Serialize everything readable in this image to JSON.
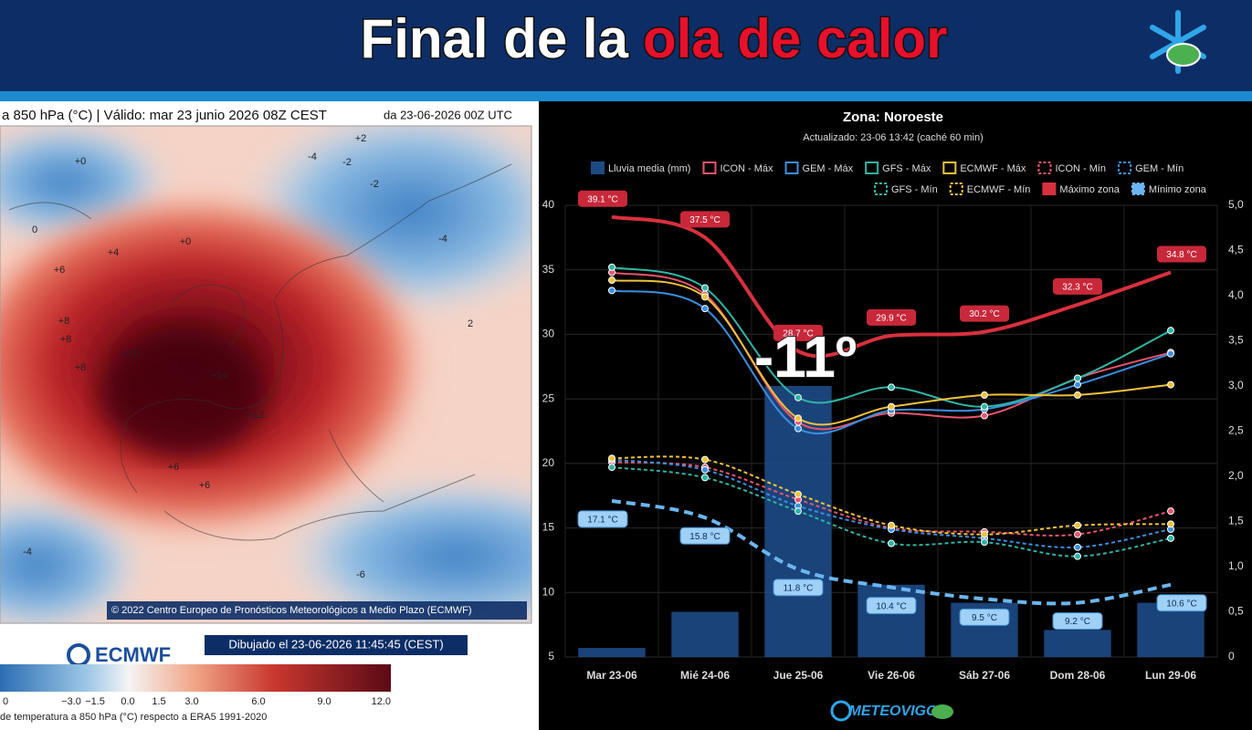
{
  "header": {
    "title_parts": [
      "Final de la",
      "ola de calor"
    ]
  },
  "map": {
    "title": "a 850 hPa (°C) | Válido: mar 23 junio 2026 08Z CEST",
    "run": "da 23-06-2026 00Z UTC",
    "copyright": "© 2022 Centro Europeo de Pronósticos Meteorológicos a Medio Plazo (ECMWF)",
    "drawn": "Dibujado el 23-06-2026 11:45:45 (CEST)",
    "logo": "ECMWF",
    "contour_labels": [
      "+2",
      "+0",
      "-4",
      "-2",
      "-2",
      "0",
      "+4",
      "+0",
      "+6",
      "+10",
      "+14",
      "+12",
      "+8",
      "+8",
      "+6",
      "+8",
      "+6",
      "-4",
      "-6",
      "2",
      "-4"
    ],
    "colorbar_labels": [
      "0",
      "−3.0",
      "−1.5",
      "0.0",
      "1.5",
      "3.0",
      "6.0",
      "9.0",
      "12.0"
    ],
    "colorbar_caption": "de temperatura a 850 hPa (°C) respecto a ERA5 1991-2020"
  },
  "chart_data": {
    "type": "line",
    "title": "Zona: Noroeste",
    "subtitle": "Actualizado: 23-06 13:42 (caché 60 min)",
    "annotation": "-11º",
    "categories": [
      "Mar 23-06",
      "Mié 24-06",
      "Jue 25-06",
      "Vie 26-06",
      "Sáb 27-06",
      "Dom 28-06",
      "Lun 29-06"
    ],
    "ylim": [
      5,
      40
    ],
    "yticks": [
      5,
      10,
      15,
      20,
      25,
      30,
      35,
      40
    ],
    "y2lim": [
      0,
      5
    ],
    "y2ticks": [
      0,
      {
        "value": 0.5,
        "label": "0,5"
      },
      {
        "value": 1,
        "label": "1,0"
      },
      {
        "value": 1.5,
        "label": "1,5"
      },
      {
        "value": 2,
        "label": "2,0"
      },
      {
        "value": 2.5,
        "label": "2,5"
      },
      {
        "value": 3,
        "label": "3,0"
      },
      {
        "value": 3.5,
        "label": "3,5"
      },
      {
        "value": 4,
        "label": "4,0"
      },
      {
        "value": 4.5,
        "label": "4,5"
      },
      {
        "value": 5,
        "label": "5,0"
      }
    ],
    "grid": true,
    "series": [
      {
        "name": "Lluvia media (mm)",
        "type": "bar",
        "axis": "y2",
        "color": "#1d4a86",
        "values": [
          0.1,
          0.5,
          3.0,
          0.8,
          0.6,
          0.3,
          0.6
        ]
      },
      {
        "name": "ICON - Máx",
        "color": "#e8556d",
        "values": [
          34.8,
          33.1,
          23.2,
          23.9,
          23.7,
          26.6,
          28.6
        ]
      },
      {
        "name": "GEM - Máx",
        "color": "#3b8fe0",
        "values": [
          33.4,
          32.0,
          22.7,
          24.1,
          24.2,
          26.1,
          28.5
        ]
      },
      {
        "name": "GFS - Máx",
        "color": "#2fb5a5",
        "values": [
          35.2,
          33.6,
          25.1,
          25.9,
          24.4,
          26.6,
          30.3
        ]
      },
      {
        "name": "ECMWF - Máx",
        "color": "#f0c23c",
        "values": [
          34.2,
          32.9,
          23.5,
          24.4,
          25.3,
          25.3,
          26.1
        ]
      },
      {
        "name": "ICON - Mín",
        "color": "#e8556d",
        "dashed": true,
        "values": [
          20.1,
          19.7,
          17.2,
          15.0,
          14.7,
          14.5,
          16.3
        ]
      },
      {
        "name": "GEM - Mín",
        "color": "#3b8fe0",
        "dashed": true,
        "values": [
          20.3,
          19.5,
          16.7,
          14.9,
          14.2,
          13.5,
          14.9
        ]
      },
      {
        "name": "GFS - Mín",
        "color": "#2fb5a5",
        "dashed": true,
        "values": [
          19.7,
          18.9,
          16.3,
          13.8,
          13.9,
          12.8,
          14.2
        ]
      },
      {
        "name": "ECMWF - Mín",
        "color": "#f0c23c",
        "dashed": true,
        "values": [
          20.4,
          20.3,
          17.6,
          15.2,
          14.5,
          15.2,
          15.3
        ]
      },
      {
        "name": "Máximo zona",
        "color": "#d9303e",
        "thick": true,
        "values": [
          39.1,
          37.5,
          28.7,
          29.9,
          30.2,
          32.3,
          34.8
        ],
        "value_labels": [
          "39.1 °C",
          "37.5 °C",
          "28.7 °C",
          "29.9 °C",
          "30.2 °C",
          "32.3 °C",
          "34.8 °C"
        ]
      },
      {
        "name": "Mínimo zona",
        "color": "#6bb6f0",
        "thick": true,
        "dashed": true,
        "values": [
          17.1,
          15.8,
          11.8,
          10.4,
          9.5,
          9.2,
          10.6
        ],
        "value_labels": [
          "17.1 °C",
          "15.8 °C",
          "11.8 °C",
          "10.4 °C",
          "9.5 °C",
          "9.2 °C",
          "10.6 °C"
        ]
      }
    ]
  },
  "footer": {
    "brand": "METEOVIGO"
  }
}
